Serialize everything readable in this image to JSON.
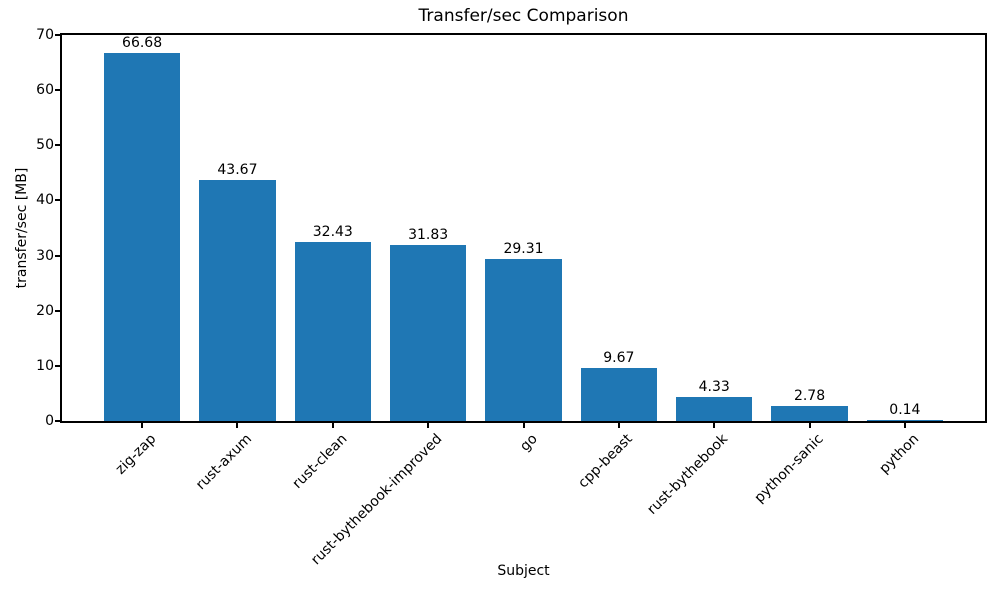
{
  "chart_data": {
    "type": "bar",
    "title": "Transfer/sec Comparison",
    "xlabel": "Subject",
    "ylabel": "transfer/sec [MB]",
    "categories": [
      "zig-zap",
      "rust-axum",
      "rust-clean",
      "rust-bythebook-improved",
      "go",
      "cpp-beast",
      "rust-bythebook",
      "python-sanic",
      "python"
    ],
    "values": [
      66.68,
      43.67,
      32.43,
      31.83,
      29.31,
      9.67,
      4.33,
      2.78,
      0.14
    ],
    "bar_labels": [
      "66.68",
      "43.67",
      "32.43",
      "31.83",
      "29.31",
      "9.67",
      "4.33",
      "2.78",
      "0.14"
    ],
    "ylim": [
      0,
      70
    ],
    "yticks": [
      "0",
      "10",
      "20",
      "30",
      "40",
      "50",
      "60",
      "70"
    ],
    "grid": false,
    "legend_position": "none",
    "bar_color": "#1f77b4",
    "axis_color": "#000000",
    "text_color": "#000000",
    "x_tick_rotation_deg": 45
  }
}
